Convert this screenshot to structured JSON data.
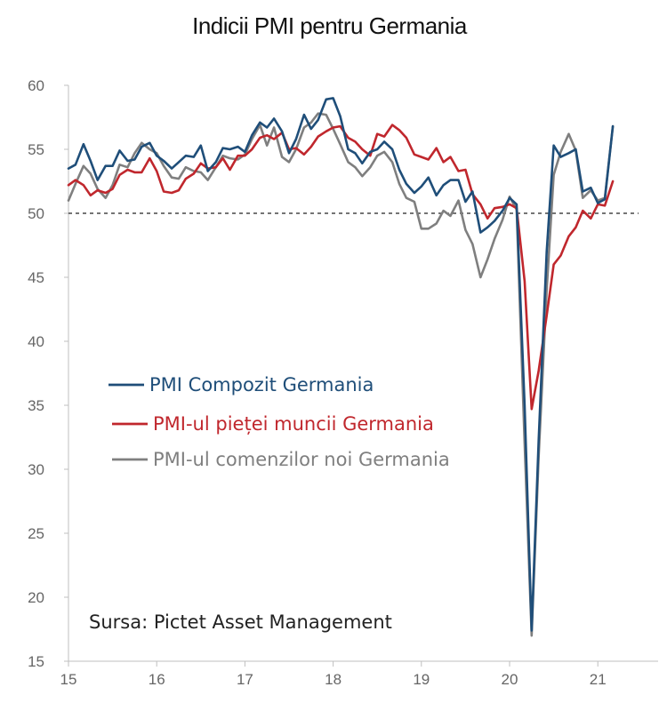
{
  "chart_data": {
    "type": "line",
    "title": "Indicii PMI pentru Germania",
    "xlabel": "",
    "ylabel": "",
    "xlim": [
      2015,
      2021.7
    ],
    "ylim": [
      15,
      60
    ],
    "yticks": [
      15,
      20,
      25,
      30,
      35,
      40,
      45,
      50,
      55,
      60
    ],
    "xticks": [
      {
        "value": 2015,
        "label": "15"
      },
      {
        "value": 2016,
        "label": "16"
      },
      {
        "value": 2017,
        "label": "17"
      },
      {
        "value": 2018,
        "label": "18"
      },
      {
        "value": 2019,
        "label": "19"
      },
      {
        "value": 2020,
        "label": "20"
      },
      {
        "value": 2021,
        "label": "21"
      }
    ],
    "reference_line": {
      "y": 50,
      "style": "dashed"
    },
    "grid": false,
    "legend_position": "center-left",
    "source": "Sursa: Pictet Asset Management",
    "x": [
      2015.0,
      2015.08,
      2015.17,
      2015.25,
      2015.33,
      2015.42,
      2015.5,
      2015.58,
      2015.67,
      2015.75,
      2015.83,
      2015.92,
      2016.0,
      2016.08,
      2016.17,
      2016.25,
      2016.33,
      2016.42,
      2016.5,
      2016.58,
      2016.67,
      2016.75,
      2016.83,
      2016.92,
      2017.0,
      2017.08,
      2017.17,
      2017.25,
      2017.33,
      2017.42,
      2017.5,
      2017.58,
      2017.67,
      2017.75,
      2017.83,
      2017.92,
      2018.0,
      2018.08,
      2018.17,
      2018.25,
      2018.33,
      2018.42,
      2018.5,
      2018.58,
      2018.67,
      2018.75,
      2018.83,
      2018.92,
      2019.0,
      2019.08,
      2019.17,
      2019.25,
      2019.33,
      2019.42,
      2019.5,
      2019.58,
      2019.67,
      2019.75,
      2019.83,
      2019.92,
      2020.0,
      2020.08,
      2020.17,
      2020.25,
      2020.33,
      2020.42,
      2020.5,
      2020.58,
      2020.67,
      2020.75,
      2020.83,
      2020.92,
      2021.0,
      2021.08,
      2021.17
    ],
    "series": [
      {
        "name": "PMI Compozit Germania",
        "color": "#1f4e79",
        "values": [
          53.5,
          53.8,
          55.4,
          54.1,
          52.6,
          53.7,
          53.7,
          54.9,
          54.1,
          54.2,
          55.2,
          55.5,
          54.5,
          54.1,
          53.5,
          54.0,
          54.5,
          54.4,
          55.3,
          53.3,
          54.0,
          55.1,
          55.0,
          55.2,
          54.8,
          56.1,
          57.1,
          56.7,
          57.4,
          56.4,
          54.7,
          55.8,
          57.7,
          56.6,
          57.3,
          58.9,
          59.0,
          57.6,
          55.0,
          54.7,
          53.9,
          54.8,
          55.0,
          55.6,
          55.0,
          53.4,
          52.3,
          51.6,
          52.1,
          52.8,
          51.4,
          52.2,
          52.6,
          52.6,
          50.9,
          51.7,
          48.5,
          48.9,
          49.4,
          50.2,
          51.2,
          50.7,
          35.0,
          17.4,
          32.3,
          47.0,
          55.3,
          54.4,
          54.7,
          55.0,
          51.7,
          52.0,
          50.8,
          51.1,
          56.8
        ]
      },
      {
        "name": "PMI-ul pieței muncii Germania",
        "color": "#c0272d",
        "values": [
          52.2,
          52.6,
          52.2,
          51.4,
          51.8,
          51.6,
          51.9,
          53.0,
          53.4,
          53.2,
          53.2,
          54.3,
          53.3,
          51.7,
          51.6,
          51.8,
          52.7,
          53.1,
          53.9,
          53.5,
          53.6,
          54.3,
          53.4,
          54.5,
          54.5,
          55.0,
          55.9,
          56.1,
          55.8,
          56.3,
          55.0,
          55.1,
          54.6,
          55.2,
          56.0,
          56.4,
          56.7,
          56.8,
          55.9,
          55.6,
          55.0,
          54.5,
          56.2,
          56.0,
          56.9,
          56.5,
          55.9,
          54.6,
          54.4,
          54.2,
          55.1,
          54.0,
          54.4,
          53.3,
          53.4,
          51.5,
          50.7,
          49.6,
          50.4,
          50.5,
          50.7,
          50.4,
          44.7,
          34.7,
          37.7,
          42.0,
          46.0,
          46.7,
          48.2,
          48.9,
          50.2,
          49.6,
          50.7,
          50.6,
          52.5
        ]
      },
      {
        "name": "PMI-ul comenzilor noi Germania",
        "color": "#7f7f7f",
        "values": [
          51.0,
          52.3,
          53.7,
          53.1,
          51.9,
          51.2,
          52.2,
          53.8,
          53.6,
          54.7,
          55.5,
          55.0,
          54.7,
          53.7,
          52.8,
          52.7,
          53.6,
          53.3,
          53.2,
          52.6,
          53.6,
          54.5,
          54.3,
          54.2,
          54.6,
          55.8,
          56.9,
          55.3,
          56.7,
          54.4,
          54.0,
          55.0,
          56.7,
          57.1,
          57.8,
          57.7,
          56.6,
          55.4,
          54.0,
          53.6,
          52.9,
          53.6,
          54.5,
          54.8,
          54.0,
          52.3,
          51.2,
          50.9,
          48.8,
          48.8,
          49.2,
          50.2,
          49.8,
          51.0,
          48.7,
          47.6,
          45.0,
          46.4,
          48.0,
          49.5,
          51.3,
          50.3,
          32.0,
          17.0,
          31.0,
          44.0,
          53.0,
          54.8,
          56.2,
          54.9,
          51.2,
          51.8,
          51.0,
          51.2,
          56.8
        ]
      }
    ]
  }
}
